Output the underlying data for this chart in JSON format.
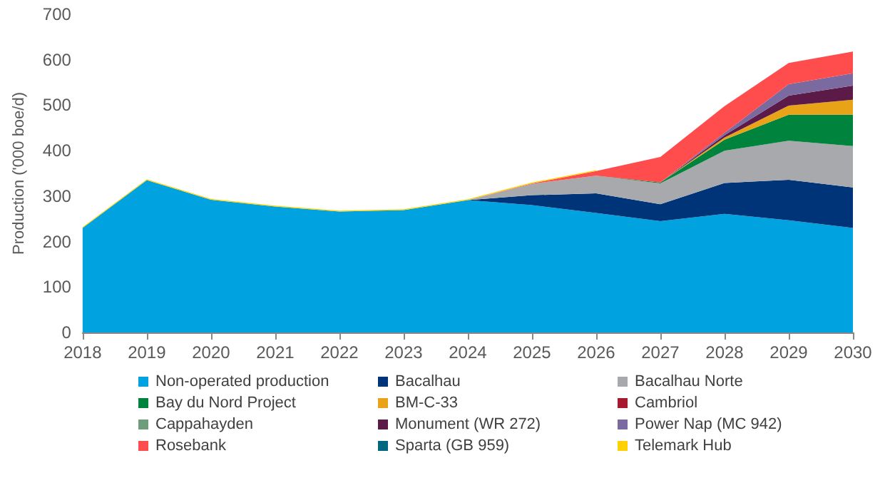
{
  "chart_data": {
    "type": "area",
    "stacked": true,
    "ylabel": "Production ('000 boe/d)",
    "x": [
      2018,
      2019,
      2020,
      2021,
      2022,
      2023,
      2024,
      2025,
      2026,
      2027,
      2028,
      2029,
      2030
    ],
    "xlim": [
      2018,
      2030
    ],
    "xticks": [
      2018,
      2019,
      2020,
      2021,
      2022,
      2023,
      2024,
      2025,
      2026,
      2027,
      2028,
      2029,
      2030
    ],
    "ylim": [
      0,
      700
    ],
    "yticks": [
      0,
      100,
      200,
      300,
      400,
      500,
      600,
      700
    ],
    "grid": false,
    "legend": "bottom",
    "series": [
      {
        "name": "Non-operated production",
        "color": "#00a3e0",
        "values": [
          230,
          335,
          292,
          277,
          266,
          269,
          291,
          280,
          263,
          245,
          261,
          247,
          230
        ]
      },
      {
        "name": "Bacalhau",
        "color": "#003478",
        "values": [
          null,
          null,
          null,
          null,
          null,
          null,
          0,
          22,
          43,
          37,
          68,
          89,
          89
        ]
      },
      {
        "name": "Bacalhau Norte",
        "color": "#a8a9ad",
        "values": [
          null,
          null,
          null,
          null,
          null,
          null,
          0,
          25,
          39,
          46,
          71,
          86,
          91
        ]
      },
      {
        "name": "Bay du Nord Project",
        "color": "#00843d",
        "values": [
          null,
          null,
          null,
          null,
          null,
          null,
          null,
          null,
          0,
          2,
          24,
          57,
          69
        ]
      },
      {
        "name": "BM-C-33",
        "color": "#e8a317",
        "values": [
          null,
          null,
          null,
          null,
          null,
          null,
          null,
          null,
          null,
          0,
          5,
          20,
          33
        ]
      },
      {
        "name": "Cambriol",
        "color": "#a6192e",
        "values": [
          null,
          null,
          null,
          null,
          null,
          null,
          null,
          null,
          null,
          null,
          null,
          null,
          null
        ]
      },
      {
        "name": "Cappahayden",
        "color": "#6f9c7a",
        "values": [
          null,
          null,
          null,
          null,
          null,
          null,
          null,
          null,
          null,
          null,
          null,
          null,
          null
        ]
      },
      {
        "name": "Monument (WR 272)",
        "color": "#5c1a48",
        "values": [
          null,
          null,
          null,
          null,
          null,
          null,
          null,
          null,
          null,
          0,
          5,
          22,
          31
        ]
      },
      {
        "name": "Power Nap (MC 942)",
        "color": "#7a6aa0",
        "values": [
          null,
          null,
          null,
          null,
          null,
          null,
          null,
          null,
          null,
          0,
          5,
          25,
          27
        ]
      },
      {
        "name": "Rosebank",
        "color": "#ff4c4c",
        "values": [
          null,
          null,
          null,
          null,
          null,
          null,
          0,
          1,
          10,
          56,
          59,
          47,
          48
        ]
      },
      {
        "name": "Sparta (GB 959)",
        "color": "#00677f",
        "values": [
          null,
          null,
          null,
          null,
          null,
          null,
          null,
          null,
          null,
          null,
          null,
          null,
          null
        ]
      },
      {
        "name": "Telemark Hub",
        "color": "#ffd100",
        "values": [
          2,
          2,
          2,
          2,
          2,
          2,
          2,
          2,
          2,
          null,
          null,
          null,
          null
        ]
      }
    ]
  }
}
